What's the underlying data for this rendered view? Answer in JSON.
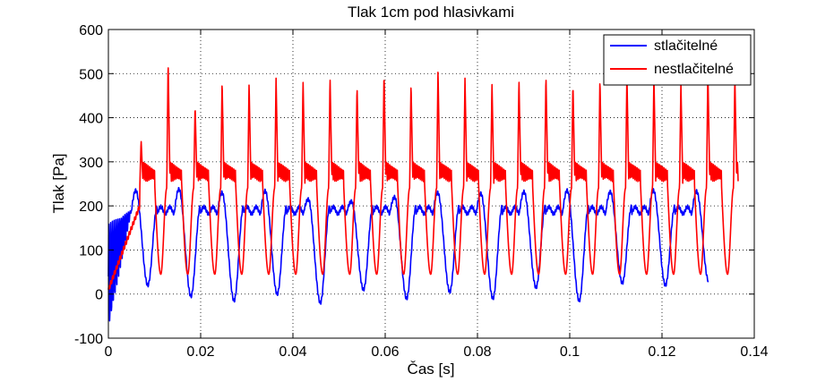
{
  "chart_data": {
    "type": "line",
    "title": "Tlak 1cm pod hlasivkami",
    "xlabel": "Čas [s]",
    "ylabel": "Tlak [Pa]",
    "xlim": [
      0,
      0.14
    ],
    "ylim": [
      -100,
      600
    ],
    "xticks": [
      0,
      0.02,
      0.04,
      0.06,
      0.08,
      0.1,
      0.12,
      0.14
    ],
    "xtick_labels": [
      "0",
      "0.02",
      "0.04",
      "0.06",
      "0.08",
      "0.1",
      "0.12",
      "0.14"
    ],
    "yticks": [
      -100,
      0,
      100,
      200,
      300,
      400,
      500,
      600
    ],
    "ytick_labels": [
      "-100",
      "0",
      "100",
      "200",
      "300",
      "400",
      "500",
      "600"
    ],
    "grid": true,
    "legend_position": "top-right",
    "colors": {
      "compressible": "#0000ff",
      "incompressible": "#ff0000"
    },
    "series": [
      {
        "name": "stlačitelné",
        "color": "#0000ff",
        "x_end": 0.13,
        "period": 0.00935,
        "waveform": "glottal pulses: plateau ~190 Pa, rise to ~230 Pa, drop to ~-20..30 Pa minima; initial transient 0–0.005 s oscillating between -20 and 230",
        "peak_values": [
          235,
          238,
          230,
          234,
          215,
          210,
          220,
          230,
          228,
          232,
          235,
          232,
          235,
          233
        ],
        "minimum_values": [
          20,
          -5,
          -15,
          0,
          -20,
          10,
          -10,
          5,
          -10,
          15,
          -15,
          25,
          20,
          30
        ]
      },
      {
        "name": "nestlačitelné",
        "color": "#ff0000",
        "x_end": 0.1365,
        "period": 0.00585,
        "waveform": "sharp peaks with ripple ~240–300 Pa then smooth dip to ~45 Pa; initial ramp from 0 to ~200 Pa over 0–0.007 s",
        "peak_values": [
          350,
          530,
          430,
          485,
          480,
          490,
          485,
          495,
          475,
          505,
          480,
          510,
          490,
          480,
          490,
          500,
          480,
          490,
          500,
          495,
          480,
          510,
          495
        ],
        "minimum_values": [
          45,
          45,
          45,
          45,
          45,
          45,
          45,
          45,
          45,
          45,
          45,
          45,
          45,
          45,
          45,
          45,
          45,
          45,
          45,
          45,
          45
        ]
      }
    ]
  }
}
